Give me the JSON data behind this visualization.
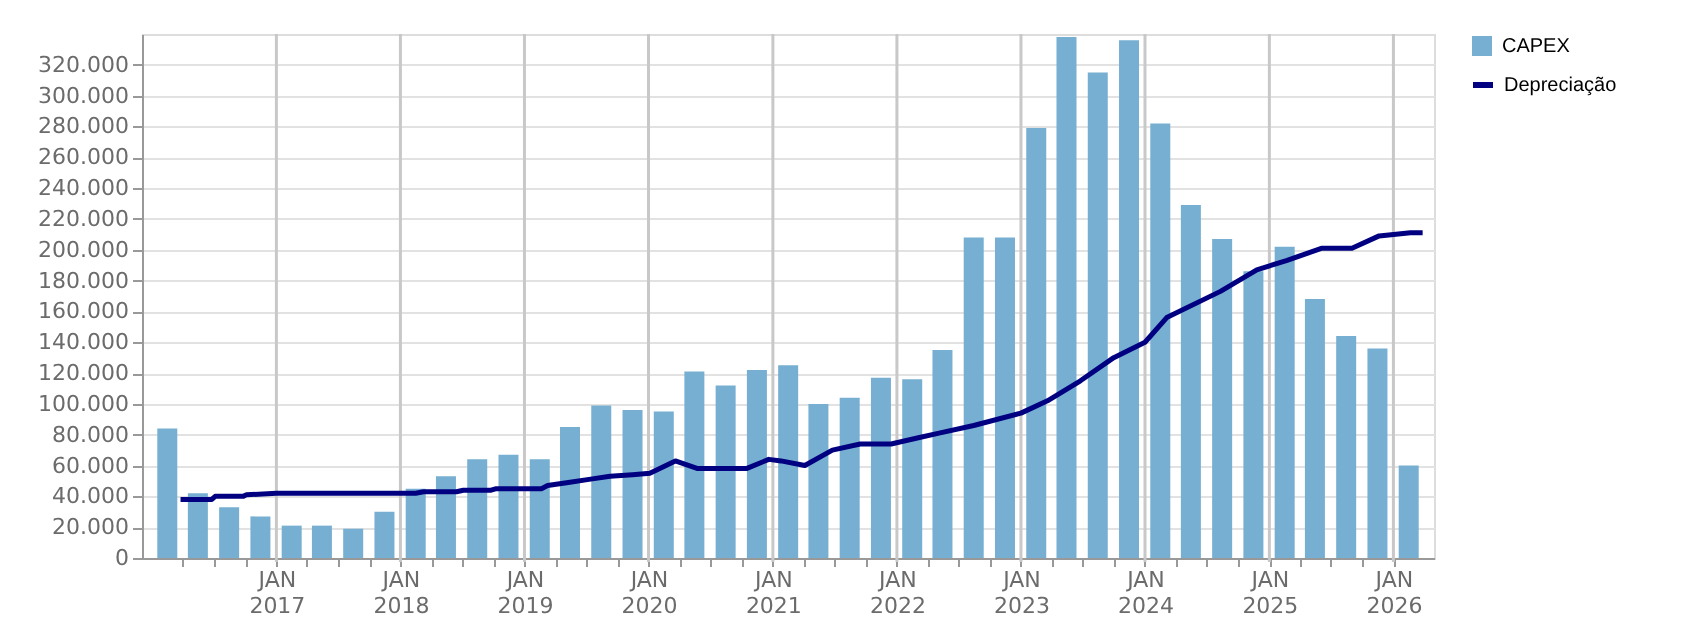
{
  "chart_data": {
    "type": "bar",
    "xlim": [
      "2016-01-01",
      "2026-04-01"
    ],
    "xticks": [
      {
        "value": "2016-04-01",
        "label": null
      },
      {
        "value": "2016-07-01",
        "label": null
      },
      {
        "value": "2016-10-01",
        "label": null
      },
      {
        "value": "2017-01-01",
        "label": "JAN 2017"
      },
      {
        "value": "2017-04-01",
        "label": null
      },
      {
        "value": "2017-07-01",
        "label": null
      },
      {
        "value": "2017-10-01",
        "label": null
      },
      {
        "value": "2018-01-01",
        "label": "JAN 2018"
      },
      {
        "value": "2018-04-01",
        "label": null
      },
      {
        "value": "2018-07-01",
        "label": null
      },
      {
        "value": "2018-10-01",
        "label": null
      },
      {
        "value": "2019-01-01",
        "label": "JAN 2019"
      },
      {
        "value": "2019-04-01",
        "label": null
      },
      {
        "value": "2019-07-01",
        "label": null
      },
      {
        "value": "2019-10-01",
        "label": null
      },
      {
        "value": "2020-01-01",
        "label": "JAN 2020"
      },
      {
        "value": "2020-04-01",
        "label": null
      },
      {
        "value": "2020-07-01",
        "label": null
      },
      {
        "value": "2020-10-01",
        "label": null
      },
      {
        "value": "2021-01-01",
        "label": "JAN 2021"
      },
      {
        "value": "2021-04-01",
        "label": null
      },
      {
        "value": "2021-07-01",
        "label": null
      },
      {
        "value": "2021-10-01",
        "label": null
      },
      {
        "value": "2022-01-01",
        "label": "JAN 2022"
      },
      {
        "value": "2022-04-01",
        "label": null
      },
      {
        "value": "2022-07-01",
        "label": null
      },
      {
        "value": "2022-10-01",
        "label": null
      },
      {
        "value": "2023-01-01",
        "label": "JAN 2023"
      },
      {
        "value": "2023-04-01",
        "label": null
      },
      {
        "value": "2023-07-01",
        "label": null
      },
      {
        "value": "2023-10-01",
        "label": null
      },
      {
        "value": "2024-01-01",
        "label": "JAN 2024"
      },
      {
        "value": "2024-04-01",
        "label": null
      },
      {
        "value": "2024-07-01",
        "label": null
      },
      {
        "value": "2024-10-01",
        "label": null
      },
      {
        "value": "2025-01-01",
        "label": "JAN 2025"
      },
      {
        "value": "2025-04-01",
        "label": null
      },
      {
        "value": "2025-07-01",
        "label": null
      },
      {
        "value": "2025-10-01",
        "label": null
      },
      {
        "value": "2026-01-01",
        "label": "JAN 2026"
      }
    ],
    "ylim": [
      0,
      340000
    ],
    "yticks": [
      0,
      {
        "value": 20000,
        "label": "20.000"
      },
      {
        "value": 40000,
        "label": "40.000"
      },
      {
        "value": 60000,
        "label": "60.000"
      },
      {
        "value": 80000,
        "label": "80.000"
      },
      {
        "value": 100000,
        "label": "100.000"
      },
      {
        "value": 120000,
        "label": "120.000"
      },
      {
        "value": 140000,
        "label": "140.000"
      },
      {
        "value": 160000,
        "label": "160.000"
      },
      {
        "value": 180000,
        "label": "180.000"
      },
      {
        "value": 200000,
        "label": "200.000"
      },
      {
        "value": 220000,
        "label": "220.000"
      },
      {
        "value": 240000,
        "label": "240.000"
      },
      {
        "value": 260000,
        "label": "260.000"
      },
      {
        "value": 280000,
        "label": "280.000"
      },
      {
        "value": 300000,
        "label": "300.000"
      },
      {
        "value": 320000,
        "label": "320.000"
      }
    ],
    "grid": true,
    "legend": "top right",
    "series": [
      {
        "name": "CAPEX",
        "color": "#76afd2",
        "x": [
          "2016-02-15",
          "2016-05-15",
          "2016-08-15",
          "2016-11-15",
          "2017-02-15",
          "2017-05-15",
          "2017-08-15",
          "2017-11-15",
          "2018-02-15",
          "2018-05-15",
          "2018-08-15",
          "2018-11-15",
          "2019-02-15",
          "2019-05-15",
          "2019-08-15",
          "2019-11-15",
          "2020-02-15",
          "2020-05-15",
          "2020-08-15",
          "2020-11-15",
          "2021-02-15",
          "2021-05-15",
          "2021-08-15",
          "2021-11-15",
          "2022-02-15",
          "2022-05-15",
          "2022-08-15",
          "2022-11-15",
          "2023-02-15",
          "2023-05-15",
          "2023-08-15",
          "2023-11-15",
          "2024-02-15",
          "2024-05-15",
          "2024-08-15",
          "2024-11-15",
          "2025-02-15",
          "2025-05-15",
          "2025-08-15",
          "2025-11-15",
          "2026-02-15"
        ],
        "values": [
          84000,
          42000,
          33000,
          27000,
          21000,
          21000,
          19000,
          30000,
          45000,
          53000,
          64000,
          67000,
          64000,
          85000,
          99000,
          96000,
          95000,
          121000,
          112000,
          122000,
          125000,
          100000,
          104000,
          117000,
          116000,
          135000,
          208000,
          208000,
          279000,
          338000,
          315000,
          336000,
          282000,
          229000,
          207000,
          186000,
          202000,
          168000,
          144000,
          136000,
          60000
        ]
      },
      {
        "name": "Depreciação",
        "type": "line",
        "color": "#000080",
        "line_style": "solid",
        "x": [
          "2016-03-25",
          "2016-06-25",
          "2016-07-05",
          "2016-09-25",
          "2016-10-05",
          "2017-01-01",
          "2018-02-15",
          "2018-03-10",
          "2018-06-15",
          "2018-07-05",
          "2018-09-25",
          "2018-10-10",
          "2019-02-20",
          "2019-03-10",
          "2019-05-10",
          "2019-07-10",
          "2019-09-10",
          "2019-11-15",
          "2020-01-05",
          "2020-03-20",
          "2020-05-25",
          "2020-10-15",
          "2020-12-20",
          "2021-01-25",
          "2021-04-05",
          "2021-06-25",
          "2021-09-15",
          "2021-12-15",
          "2022-03-05",
          "2022-05-05",
          "2022-08-15",
          "2023-01-01",
          "2023-03-20",
          "2023-06-25",
          "2023-10-01",
          "2024-01-01",
          "2024-03-05",
          "2024-08-10",
          "2024-11-25",
          "2025-02-20",
          "2025-06-05",
          "2025-09-01",
          "2025-11-20",
          "2026-02-20",
          "2026-03-28"
        ],
        "values": [
          38000,
          38000,
          40000,
          40000,
          41000,
          42000,
          42000,
          43000,
          43000,
          44000,
          44000,
          45000,
          45000,
          47000,
          49000,
          51000,
          53000,
          54000,
          55000,
          63000,
          58000,
          58000,
          64000,
          63000,
          60000,
          70000,
          74000,
          74000,
          78000,
          81000,
          86000,
          94000,
          102000,
          115000,
          130000,
          140000,
          156000,
          173000,
          187000,
          193000,
          201000,
          201000,
          209000,
          211000,
          211000
        ]
      }
    ]
  }
}
